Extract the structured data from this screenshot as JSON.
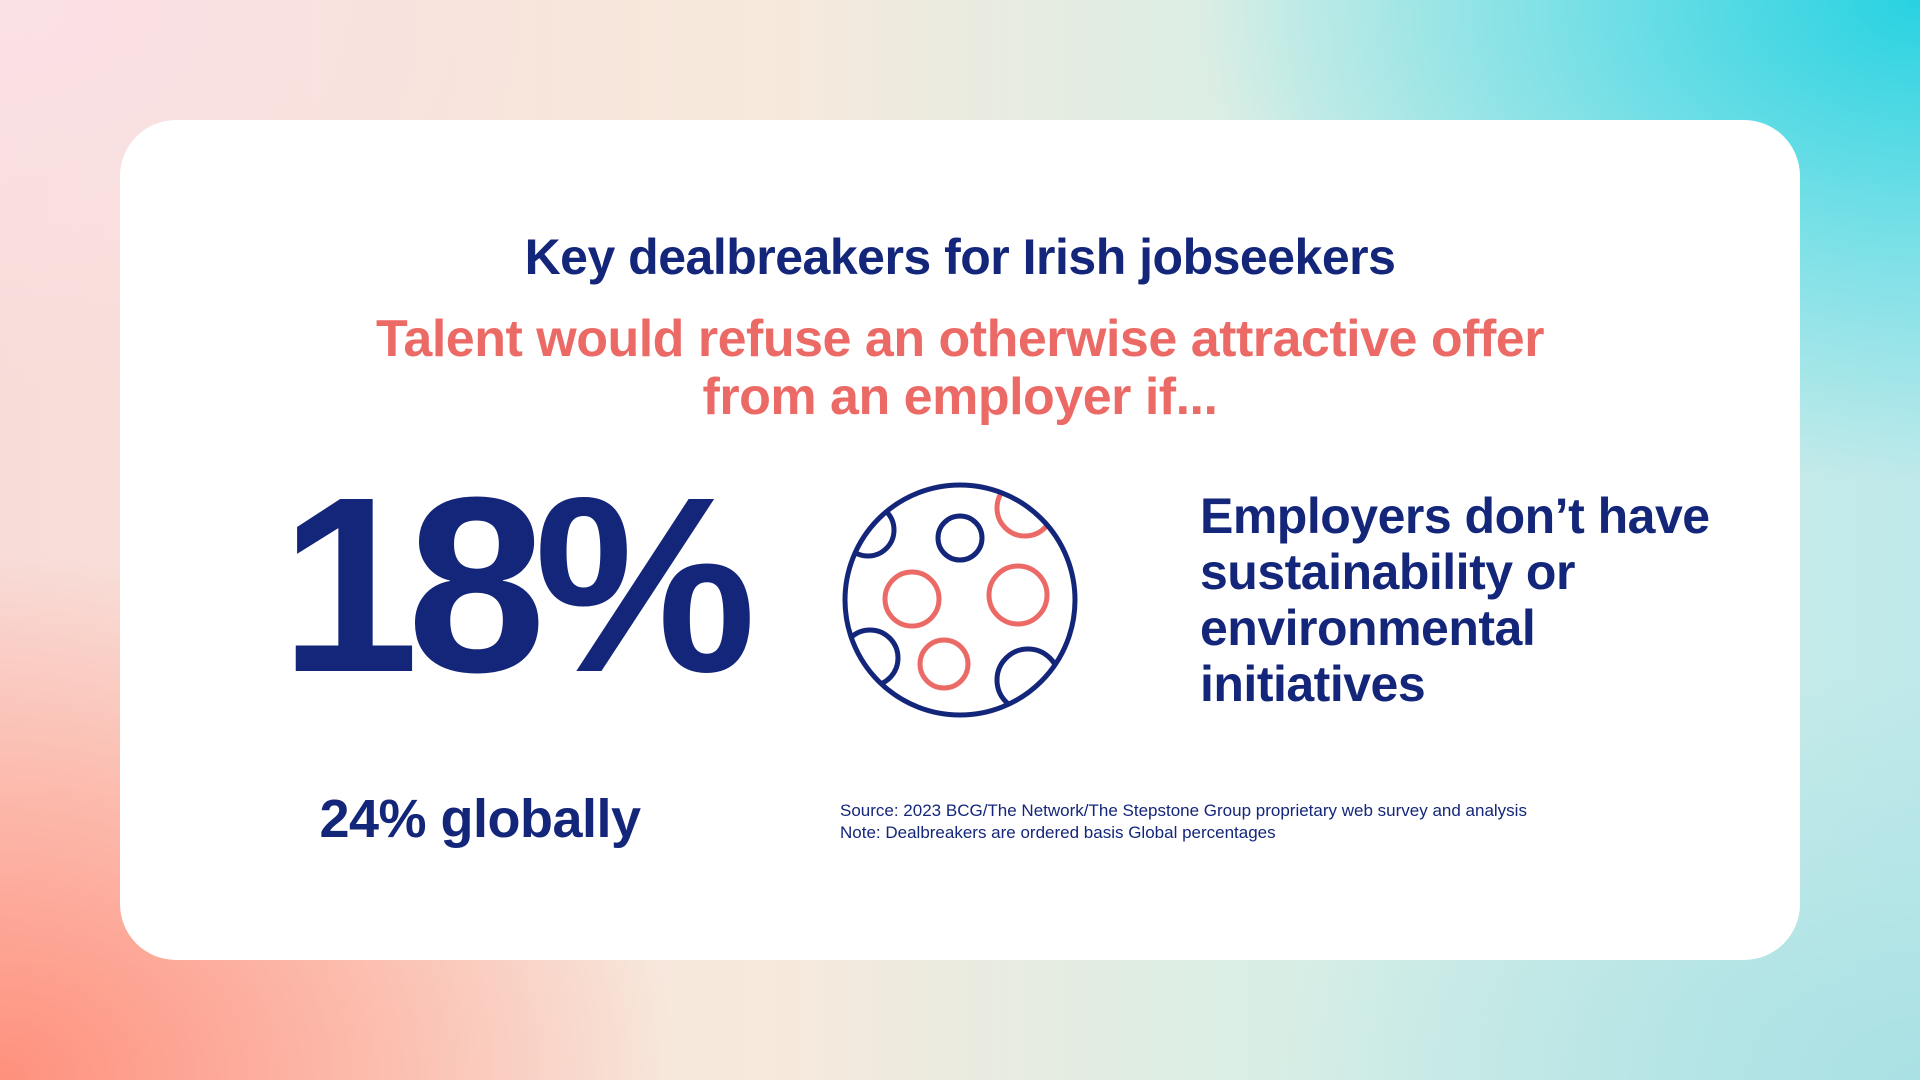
{
  "card": {
    "title": "Key dealbreakers for Irish jobseekers",
    "subtitle": "Talent would refuse an otherwise attractive offer from an employer if...",
    "stat": {
      "value": "18%",
      "global": "24% globally"
    },
    "statement": "Employers don’t have sustainability or environmental initiatives",
    "icon": "globe-with-circles-icon",
    "footnotes": {
      "source": "Source: 2023 BCG/The Network/The Stepstone Group proprietary web survey and analysis",
      "note": "Note: Dealbreakers are ordered basis Global percentages"
    }
  },
  "colors": {
    "navy": "#14267a",
    "coral": "#ec6a66",
    "card_background": "#ffffff"
  }
}
